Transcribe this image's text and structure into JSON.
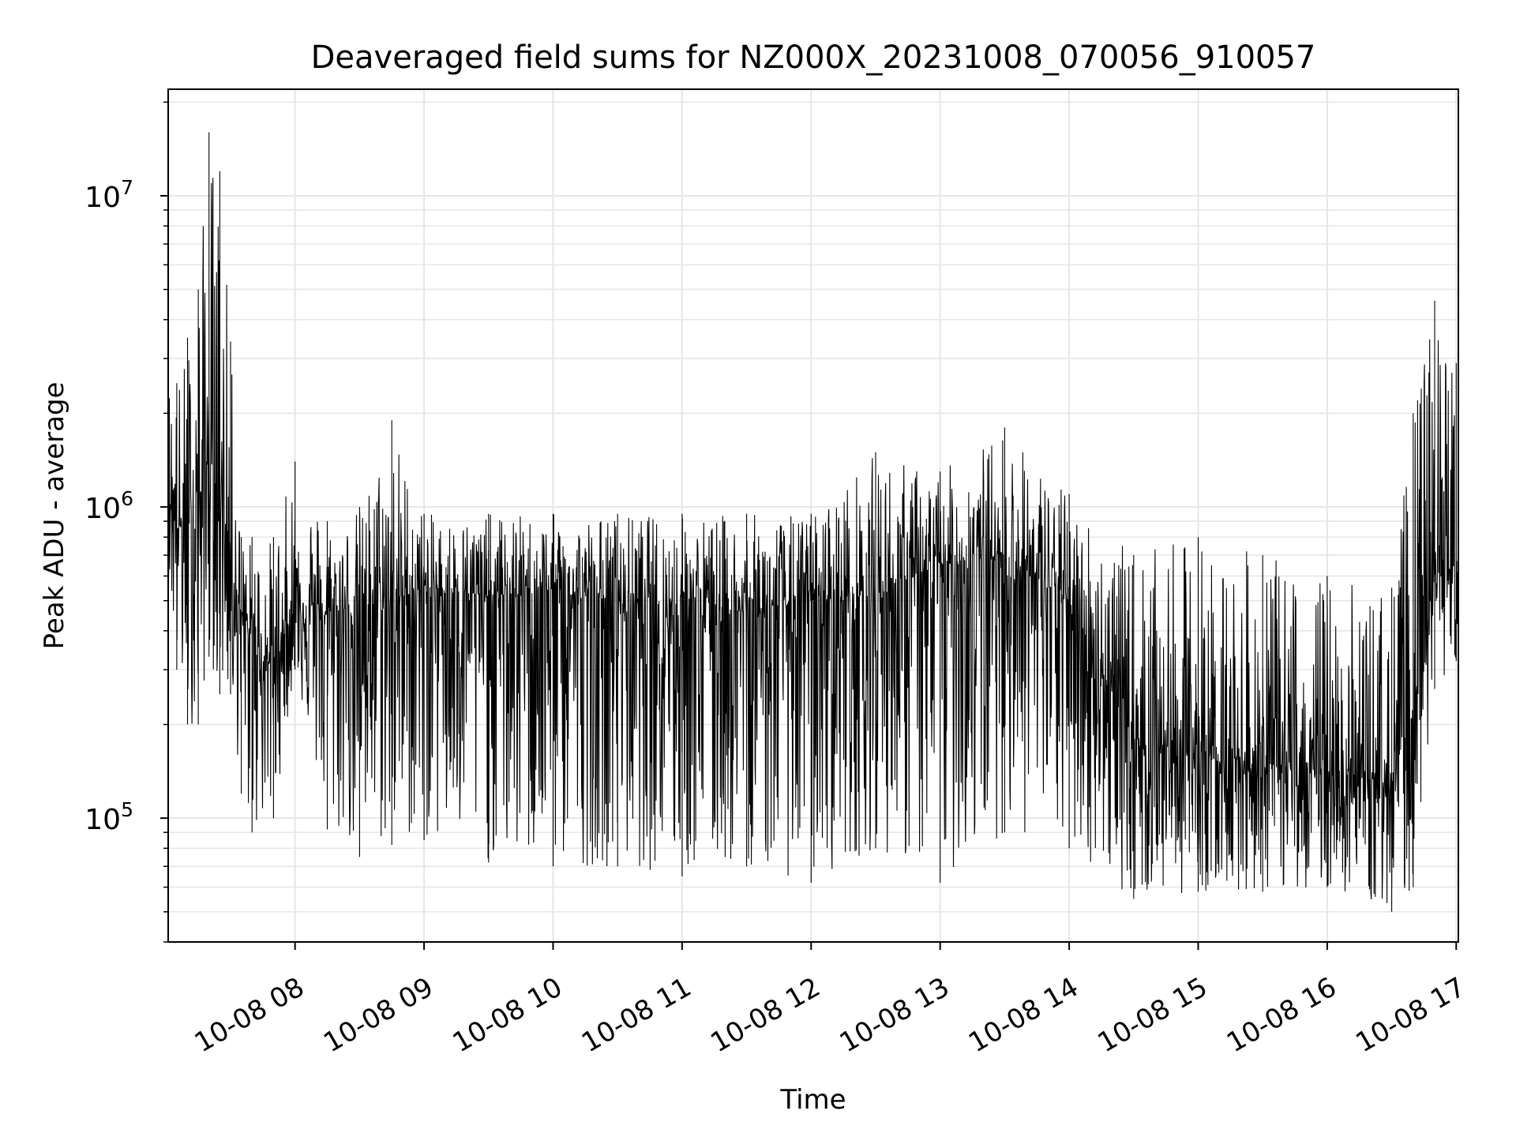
{
  "chart_data": {
    "type": "line",
    "title": "Deaveraged field sums for NZ000X_20231008_070056_910057",
    "xlabel": "Time",
    "ylabel": "Peak ADU - average",
    "yscale": "log",
    "grid": true,
    "xlim": [
      "2023-10-08T07:01:00",
      "2023-10-08T17:01:00"
    ],
    "ylim": [
      40000,
      22000000
    ],
    "x_ticks": [
      {
        "value": "2023-10-08T08:00:00",
        "label": "10-08 08"
      },
      {
        "value": "2023-10-08T09:00:00",
        "label": "10-08 09"
      },
      {
        "value": "2023-10-08T10:00:00",
        "label": "10-08 10"
      },
      {
        "value": "2023-10-08T11:00:00",
        "label": "10-08 11"
      },
      {
        "value": "2023-10-08T12:00:00",
        "label": "10-08 12"
      },
      {
        "value": "2023-10-08T13:00:00",
        "label": "10-08 13"
      },
      {
        "value": "2023-10-08T14:00:00",
        "label": "10-08 14"
      },
      {
        "value": "2023-10-08T15:00:00",
        "label": "10-08 15"
      },
      {
        "value": "2023-10-08T16:00:00",
        "label": "10-08 16"
      },
      {
        "value": "2023-10-08T17:00:00",
        "label": "10-08 17"
      }
    ],
    "y_ticks": [
      {
        "value": 100000,
        "base": "10",
        "exp": "5"
      },
      {
        "value": 1000000,
        "base": "10",
        "exp": "6"
      },
      {
        "value": 10000000,
        "base": "10",
        "exp": "7"
      }
    ],
    "line_color": "#000000",
    "series": [
      {
        "x": [
          "2023-10-08T07:01:00",
          "2023-10-08T07:05:00",
          "2023-10-08T07:10:00",
          "2023-10-08T07:15:00",
          "2023-10-08T07:20:00",
          "2023-10-08T07:25:00",
          "2023-10-08T07:30:00",
          "2023-10-08T07:35:00",
          "2023-10-08T07:40:00",
          "2023-10-08T07:50:00",
          "2023-10-08T08:00:00",
          "2023-10-08T08:15:00",
          "2023-10-08T08:30:00",
          "2023-10-08T08:45:00",
          "2023-10-08T09:00:00",
          "2023-10-08T09:30:00",
          "2023-10-08T10:00:00",
          "2023-10-08T10:30:00",
          "2023-10-08T11:00:00",
          "2023-10-08T11:30:00",
          "2023-10-08T12:00:00",
          "2023-10-08T12:30:00",
          "2023-10-08T13:00:00",
          "2023-10-08T13:30:00",
          "2023-10-08T14:00:00",
          "2023-10-08T14:30:00",
          "2023-10-08T15:00:00",
          "2023-10-08T15:30:00",
          "2023-10-08T16:00:00",
          "2023-10-08T16:30:00",
          "2023-10-08T16:40:00",
          "2023-10-08T16:50:00",
          "2023-10-08T17:00:00",
          "2023-10-08T17:01:00"
        ],
        "y": [
          1200000,
          900000,
          800000,
          1000000,
          1500000,
          1100000,
          700000,
          450000,
          380000,
          300000,
          500000,
          450000,
          480000,
          500000,
          550000,
          520000,
          530000,
          500000,
          480000,
          460000,
          500000,
          520000,
          650000,
          700000,
          500000,
          180000,
          160000,
          150000,
          140000,
          130000,
          220000,
          600000,
          650000,
          500000
        ],
        "upper": [
          2800000,
          2500000,
          3500000,
          5000000,
          16000000,
          12000000,
          3400000,
          800000,
          800000,
          800000,
          1400000,
          900000,
          1000000,
          1900000,
          950000,
          950000,
          950000,
          950000,
          950000,
          950000,
          950000,
          1500000,
          1300000,
          1800000,
          1100000,
          700000,
          800000,
          700000,
          600000,
          550000,
          2000000,
          4600000,
          2900000,
          800000
        ],
        "lower": [
          600000,
          300000,
          200000,
          200000,
          330000,
          250000,
          250000,
          120000,
          90000,
          100000,
          300000,
          92000,
          75000,
          82000,
          85000,
          72000,
          70000,
          70000,
          65000,
          70000,
          62000,
          80000,
          62000,
          90000,
          80000,
          55000,
          58000,
          58000,
          60000,
          50000,
          60000,
          260000,
          320000,
          400000
        ]
      }
    ]
  }
}
